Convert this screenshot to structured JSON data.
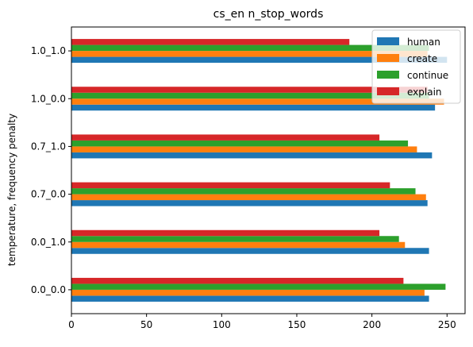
{
  "chart_data": {
    "type": "bar",
    "orientation": "horizontal",
    "title": "cs_en n_stop_words",
    "xlabel": "",
    "ylabel": "temperature, frequency penalty",
    "categories": [
      "0.0_0.0",
      "0.0_1.0",
      "0.7_0.0",
      "0.7_1.0",
      "1.0_0.0",
      "1.0_1.0"
    ],
    "xlim": [
      0,
      262
    ],
    "xticks": [
      0,
      50,
      100,
      150,
      200,
      250
    ],
    "grid": false,
    "legend_position": "top-right",
    "series": [
      {
        "name": "human",
        "color": "#1f77b4",
        "values": [
          238,
          238,
          237,
          240,
          242,
          250
        ]
      },
      {
        "name": "create",
        "color": "#ff7f0e",
        "values": [
          235,
          222,
          236,
          230,
          248,
          237
        ]
      },
      {
        "name": "continue",
        "color": "#2ca02c",
        "values": [
          249,
          218,
          229,
          224,
          238,
          238
        ]
      },
      {
        "name": "explain",
        "color": "#d62728",
        "values": [
          221,
          205,
          212,
          205,
          237,
          185
        ]
      }
    ]
  }
}
